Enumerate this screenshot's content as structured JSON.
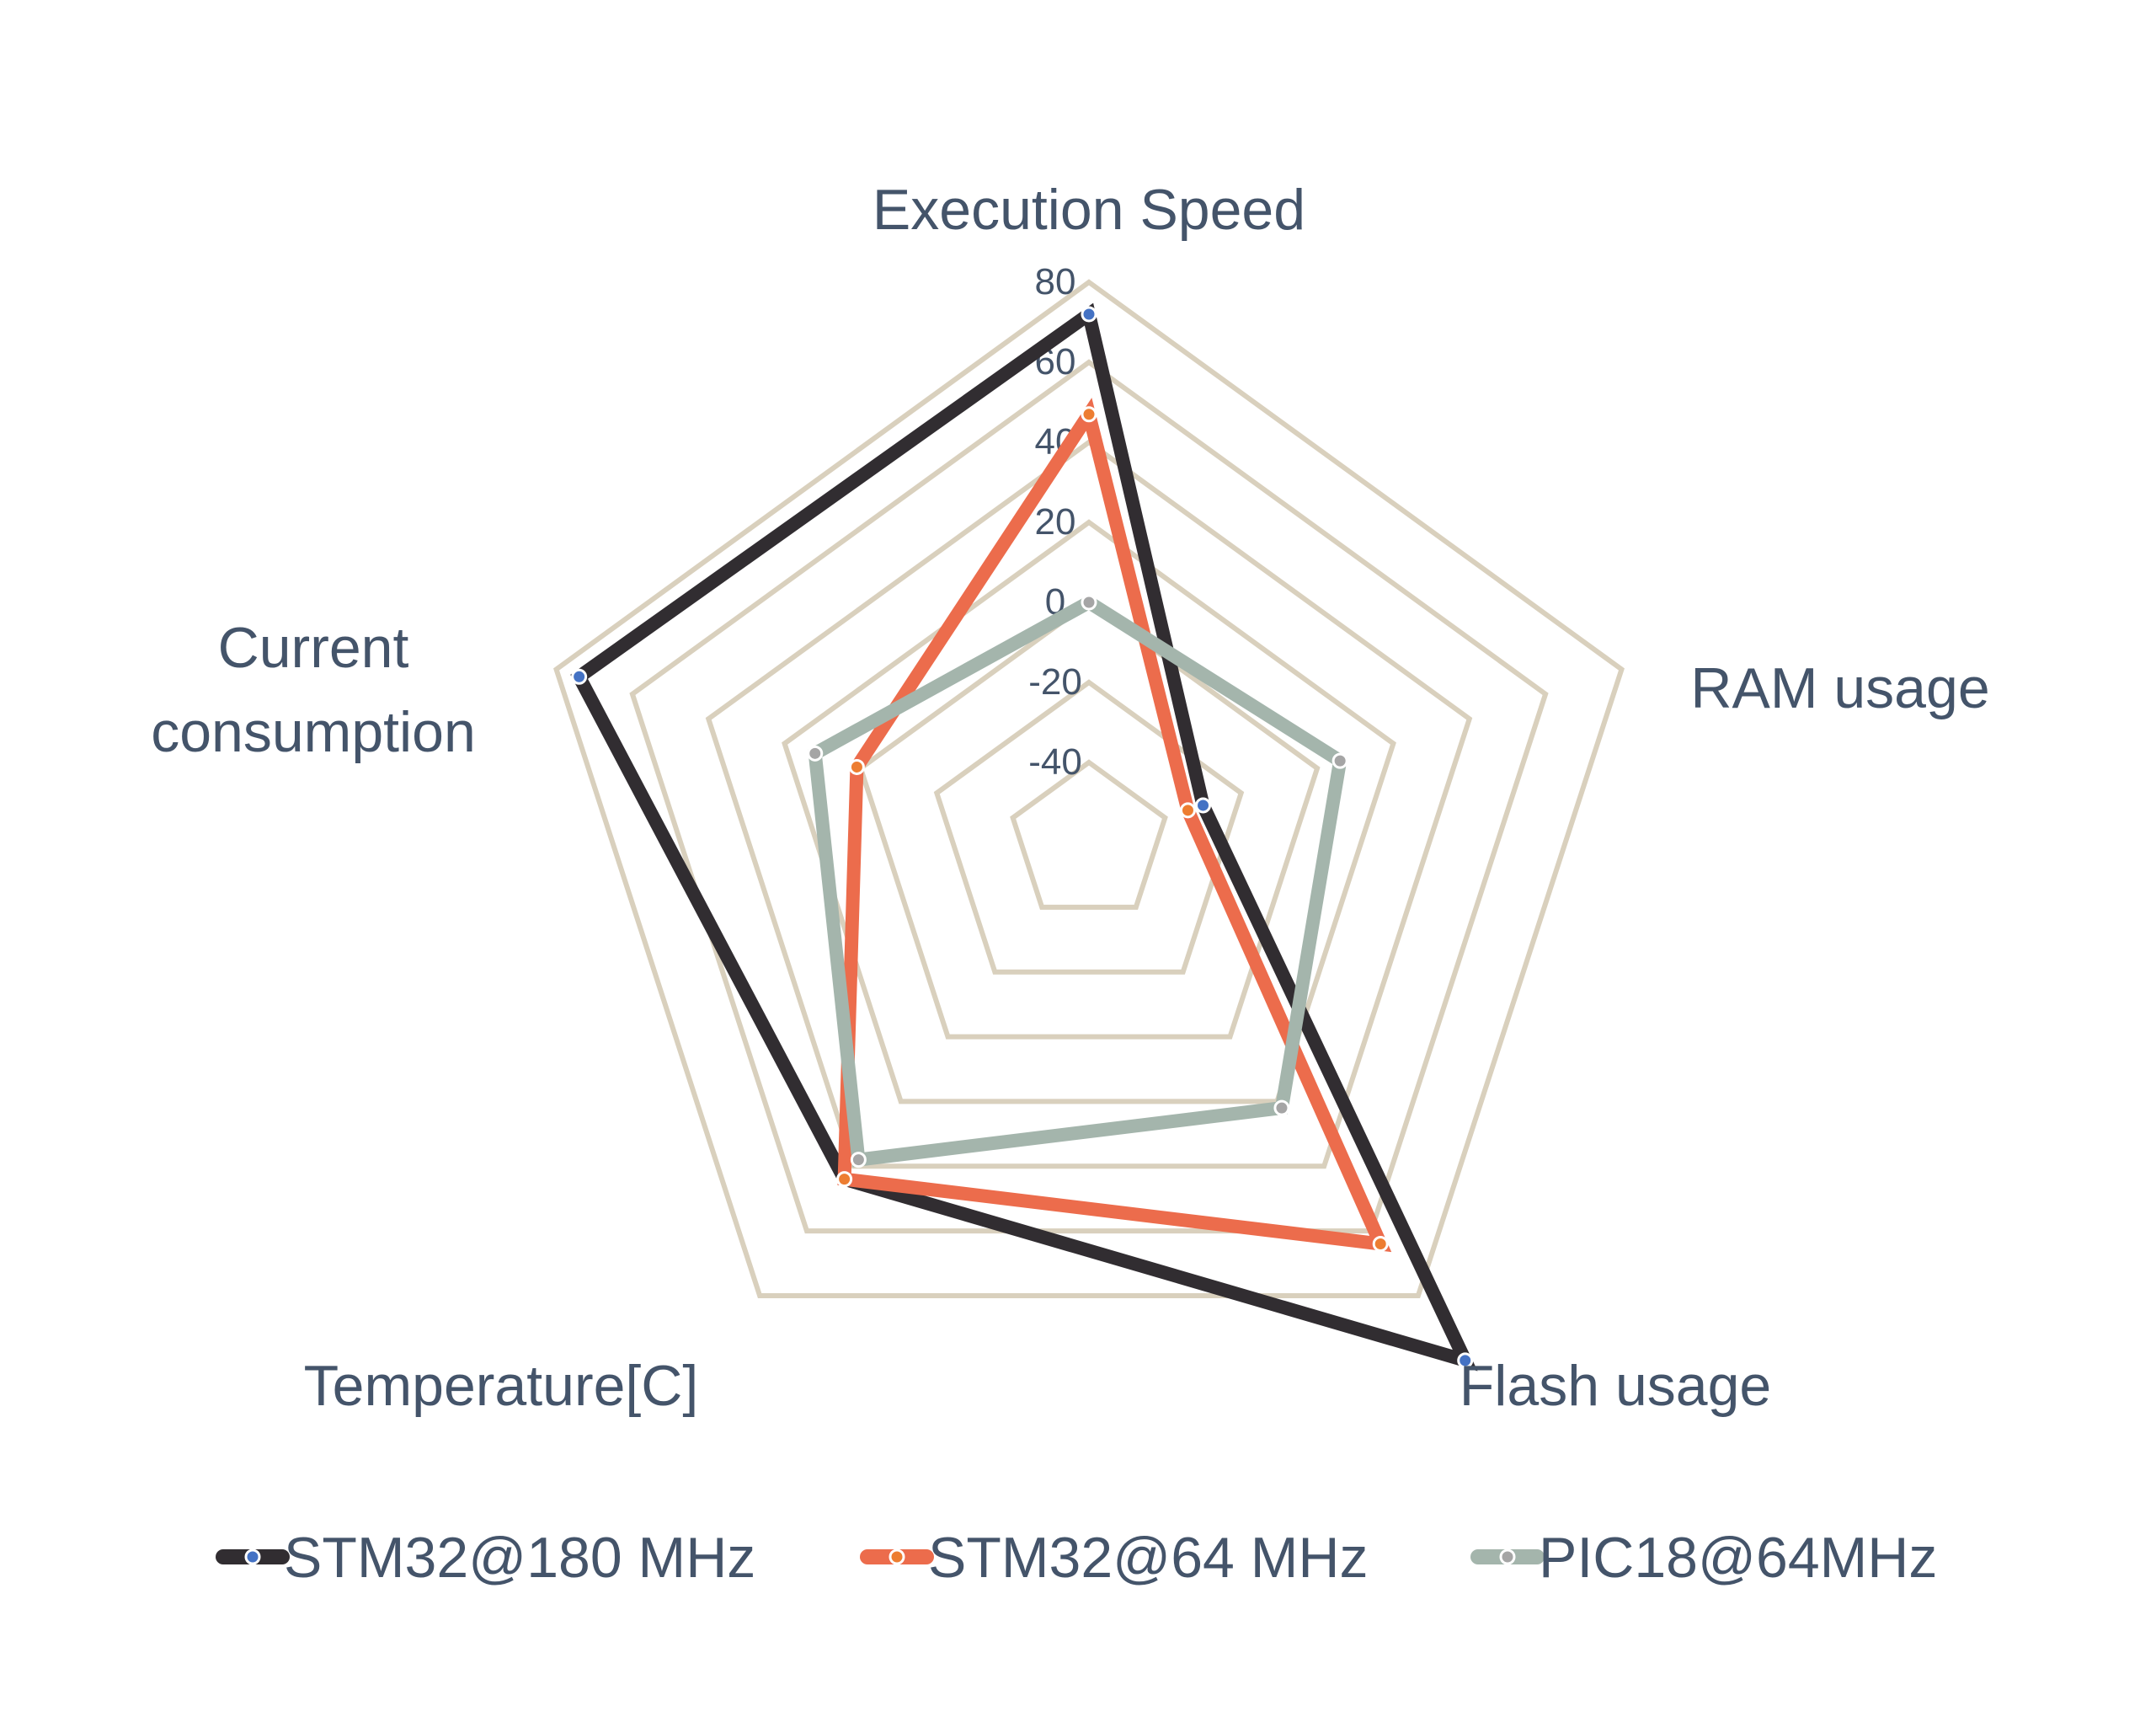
{
  "chart_data": {
    "type": "radar",
    "title": "",
    "categories": [
      "Execution Speed",
      "RAM usage",
      "Flash usage",
      "Temperature[C]",
      "Current consumption"
    ],
    "category_lines": [
      [
        "Execution Speed"
      ],
      [
        "RAM usage"
      ],
      [
        "Flash usage"
      ],
      [
        "Temperature[C]"
      ],
      [
        "Current",
        "consumption"
      ]
    ],
    "rlim": [
      -60,
      80
    ],
    "ticks": [
      -40,
      -20,
      0,
      20,
      40,
      60,
      80
    ],
    "tick_labels": [
      "-40",
      "-20",
      "0",
      "20",
      "40",
      "60",
      "80"
    ],
    "grid": true,
    "legend_position": "bottom",
    "grid_color": "#d9d0bd",
    "series": [
      {
        "name": "STM32@180 MHz",
        "color": "#312d31",
        "marker_color": "#4472c4",
        "values": [
          72,
          -30,
          100,
          44,
          74
        ]
      },
      {
        "name": "STM32@64 MHz",
        "color": "#ec6c4c",
        "marker_color": "#ed7d31",
        "values": [
          47,
          -34,
          64,
          44,
          1
        ]
      },
      {
        "name": "PIC18@64MHz",
        "color": "#a4b5ac",
        "marker_color": "#a5a5a5",
        "values": [
          0,
          6,
          22,
          38,
          12
        ]
      }
    ]
  }
}
